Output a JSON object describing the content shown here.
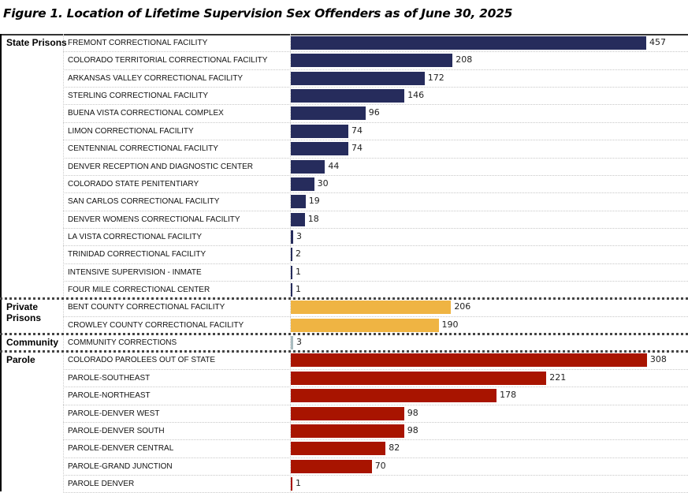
{
  "title": "Figure 1.  Location of Lifetime Supervision Sex Offenders as of June 30, 2025",
  "chart_data": {
    "type": "bar",
    "orientation": "horizontal",
    "title": "Figure 1.  Location of Lifetime Supervision Sex Offenders as of June 30, 2025",
    "groups": [
      {
        "name": "State Prisons",
        "color": "#262c5c",
        "items": [
          {
            "label": "FREMONT CORRECTIONAL FACILITY",
            "value": 457
          },
          {
            "label": "COLORADO TERRITORIAL CORRECTIONAL FACILITY",
            "value": 208
          },
          {
            "label": "ARKANSAS VALLEY CORRECTIONAL FACILITY",
            "value": 172
          },
          {
            "label": "STERLING CORRECTIONAL FACILITY",
            "value": 146
          },
          {
            "label": "BUENA VISTA CORRECTIONAL COMPLEX",
            "value": 96
          },
          {
            "label": "LIMON CORRECTIONAL FACILITY",
            "value": 74
          },
          {
            "label": "CENTENNIAL CORRECTIONAL FACILITY",
            "value": 74
          },
          {
            "label": "DENVER RECEPTION AND DIAGNOSTIC CENTER",
            "value": 44
          },
          {
            "label": "COLORADO STATE PENITENTIARY",
            "value": 30
          },
          {
            "label": "SAN CARLOS CORRECTIONAL FACILITY",
            "value": 19
          },
          {
            "label": "DENVER WOMENS CORRECTIONAL FACILITY",
            "value": 18
          },
          {
            "label": "LA VISTA CORRECTIONAL FACILITY",
            "value": 3
          },
          {
            "label": "TRINIDAD CORRECTIONAL FACILITY",
            "value": 2
          },
          {
            "label": "INTENSIVE SUPERVISION - INMATE",
            "value": 1
          },
          {
            "label": "FOUR MILE CORRECTIONAL CENTER",
            "value": 1
          }
        ]
      },
      {
        "name": "Private Prisons",
        "color": "#efb443",
        "items": [
          {
            "label": "BENT COUNTY CORRECTIONAL FACILITY",
            "value": 206
          },
          {
            "label": "CROWLEY COUNTY CORRECTIONAL FACILITY",
            "value": 190
          }
        ]
      },
      {
        "name": "Community",
        "color": "#a9bcc0",
        "items": [
          {
            "label": "COMMUNITY CORRECTIONS",
            "value": 3
          }
        ]
      },
      {
        "name": "Parole",
        "color": "#a81400",
        "items": [
          {
            "label": "COLORADO PAROLEES OUT OF STATE",
            "value": 308
          },
          {
            "label": "PAROLE-SOUTHEAST",
            "value": 221
          },
          {
            "label": "PAROLE-NORTHEAST",
            "value": 178
          },
          {
            "label": "PAROLE-DENVER WEST",
            "value": 98
          },
          {
            "label": "PAROLE-DENVER SOUTH",
            "value": 98
          },
          {
            "label": "PAROLE-DENVER CENTRAL",
            "value": 82
          },
          {
            "label": "PAROLE-GRAND JUNCTION",
            "value": 70
          },
          {
            "label": "PAROLE DENVER",
            "value": 1
          }
        ]
      }
    ]
  }
}
